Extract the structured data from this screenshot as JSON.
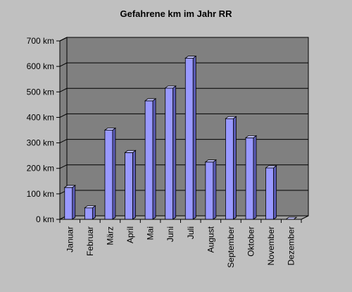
{
  "chart_data": {
    "type": "bar",
    "title": "Gefahrene km im Jahr RR",
    "xlabel": "",
    "ylabel": "",
    "unit": "km",
    "categories": [
      "Januar",
      "Februar",
      "März",
      "April",
      "Mai",
      "Juni",
      "Juli",
      "August",
      "September",
      "Oktober",
      "November",
      "Dezember"
    ],
    "values": [
      125,
      45,
      350,
      262,
      465,
      515,
      632,
      225,
      395,
      320,
      202,
      0
    ],
    "ylim": [
      0,
      700
    ],
    "yticks": [
      0,
      100,
      200,
      300,
      400,
      500,
      600,
      700
    ],
    "ytick_labels": [
      "0 km",
      "100 km",
      "200 km",
      "300 km",
      "400 km",
      "500 km",
      "600 km",
      "700 km"
    ],
    "grid": true,
    "legend": "none",
    "colors": {
      "background": "#c0c0c0",
      "plot_wall": "#808080",
      "floor": "#a0a0a0",
      "bar_front": "#9999ff",
      "bar_side": "#5c5cb8",
      "bar_top": "#c4c4ff",
      "grid": "#000000"
    }
  }
}
